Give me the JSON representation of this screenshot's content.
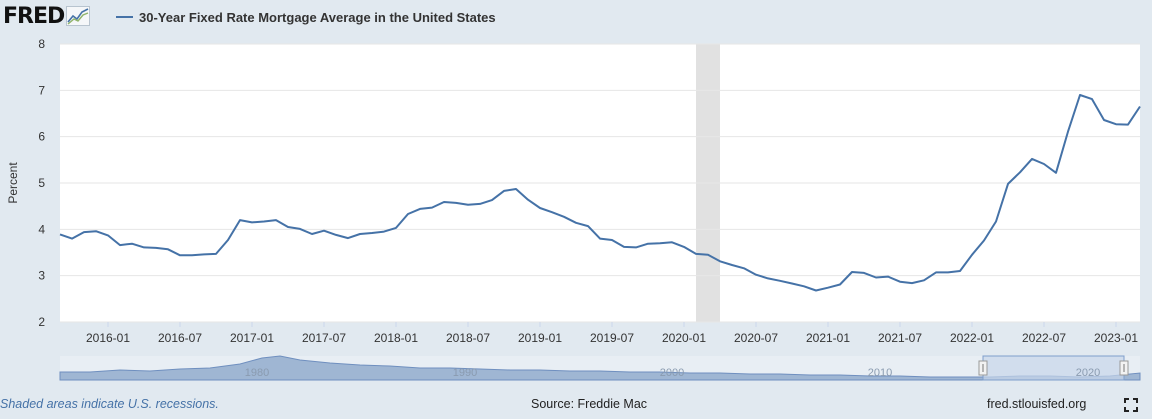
{
  "header": {
    "logo_text": "FRED",
    "logo_icon": "line-chart-icon",
    "legend_label": "30-Year Fixed Rate Mortgage Average in the United States"
  },
  "footer": {
    "recession_note": "Shaded areas indicate U.S. recessions.",
    "source": "Source: Freddie Mac",
    "url": "fred.stlouisfed.org",
    "fullscreen_icon": "fullscreen-icon"
  },
  "colors": {
    "series": "#4572a7",
    "background": "#e1e9f0",
    "plot_bg": "#ffffff",
    "recession": "#e1e1e1",
    "navigator_fill": "#9fb6d3",
    "navigator_window": "#c8d6ea"
  },
  "chart_data": {
    "type": "line",
    "title": "",
    "xlabel": "",
    "ylabel": "Percent",
    "ylim": [
      2,
      8
    ],
    "yticks": [
      2,
      3,
      4,
      5,
      6,
      7,
      8
    ],
    "xticks": [
      "2016-01",
      "2016-07",
      "2017-01",
      "2017-07",
      "2018-01",
      "2018-07",
      "2019-01",
      "2019-07",
      "2020-01",
      "2020-07",
      "2021-01",
      "2021-07",
      "2022-01",
      "2022-07",
      "2023-01"
    ],
    "grid": "horizontal",
    "legend": "top-left",
    "recession": {
      "start": "2020-02",
      "end": "2020-04"
    },
    "series": [
      {
        "name": "30-Year Fixed Rate Mortgage Average in the United States",
        "x": [
          "2015-09",
          "2015-10",
          "2015-11",
          "2015-12",
          "2016-01",
          "2016-02",
          "2016-03",
          "2016-04",
          "2016-05",
          "2016-06",
          "2016-07",
          "2016-08",
          "2016-09",
          "2016-10",
          "2016-11",
          "2016-12",
          "2017-01",
          "2017-02",
          "2017-03",
          "2017-04",
          "2017-05",
          "2017-06",
          "2017-07",
          "2017-08",
          "2017-09",
          "2017-10",
          "2017-11",
          "2017-12",
          "2018-01",
          "2018-02",
          "2018-03",
          "2018-04",
          "2018-05",
          "2018-06",
          "2018-07",
          "2018-08",
          "2018-09",
          "2018-10",
          "2018-11",
          "2018-12",
          "2019-01",
          "2019-02",
          "2019-03",
          "2019-04",
          "2019-05",
          "2019-06",
          "2019-07",
          "2019-08",
          "2019-09",
          "2019-10",
          "2019-11",
          "2019-12",
          "2020-01",
          "2020-02",
          "2020-03",
          "2020-04",
          "2020-05",
          "2020-06",
          "2020-07",
          "2020-08",
          "2020-09",
          "2020-10",
          "2020-11",
          "2020-12",
          "2021-01",
          "2021-02",
          "2021-03",
          "2021-04",
          "2021-05",
          "2021-06",
          "2021-07",
          "2021-08",
          "2021-09",
          "2021-10",
          "2021-11",
          "2021-12",
          "2022-01",
          "2022-02",
          "2022-03",
          "2022-04",
          "2022-05",
          "2022-06",
          "2022-07",
          "2022-08",
          "2022-09",
          "2022-10",
          "2022-11",
          "2022-12",
          "2023-01",
          "2023-02",
          "2023-03"
        ],
        "values": [
          3.89,
          3.8,
          3.94,
          3.96,
          3.87,
          3.66,
          3.69,
          3.61,
          3.6,
          3.57,
          3.44,
          3.44,
          3.46,
          3.47,
          3.77,
          4.2,
          4.15,
          4.17,
          4.2,
          4.05,
          4.01,
          3.9,
          3.97,
          3.88,
          3.81,
          3.9,
          3.92,
          3.95,
          4.03,
          4.33,
          4.44,
          4.47,
          4.59,
          4.57,
          4.53,
          4.55,
          4.63,
          4.83,
          4.87,
          4.64,
          4.46,
          4.37,
          4.27,
          4.14,
          4.07,
          3.8,
          3.77,
          3.62,
          3.61,
          3.69,
          3.7,
          3.72,
          3.62,
          3.47,
          3.45,
          3.31,
          3.23,
          3.16,
          3.02,
          2.94,
          2.89,
          2.83,
          2.77,
          2.68,
          2.74,
          2.81,
          3.08,
          3.06,
          2.96,
          2.98,
          2.87,
          2.84,
          2.9,
          3.07,
          3.07,
          3.1,
          3.45,
          3.76,
          4.17,
          4.98,
          5.23,
          5.52,
          5.41,
          5.22,
          6.11,
          6.9,
          6.81,
          6.36,
          6.27,
          6.26,
          6.65
        ]
      }
    ],
    "navigator": {
      "xticks": [
        "1980",
        "1990",
        "2000",
        "2010",
        "2020"
      ],
      "window": {
        "start": "2015-09",
        "end": "2023-03"
      }
    }
  }
}
